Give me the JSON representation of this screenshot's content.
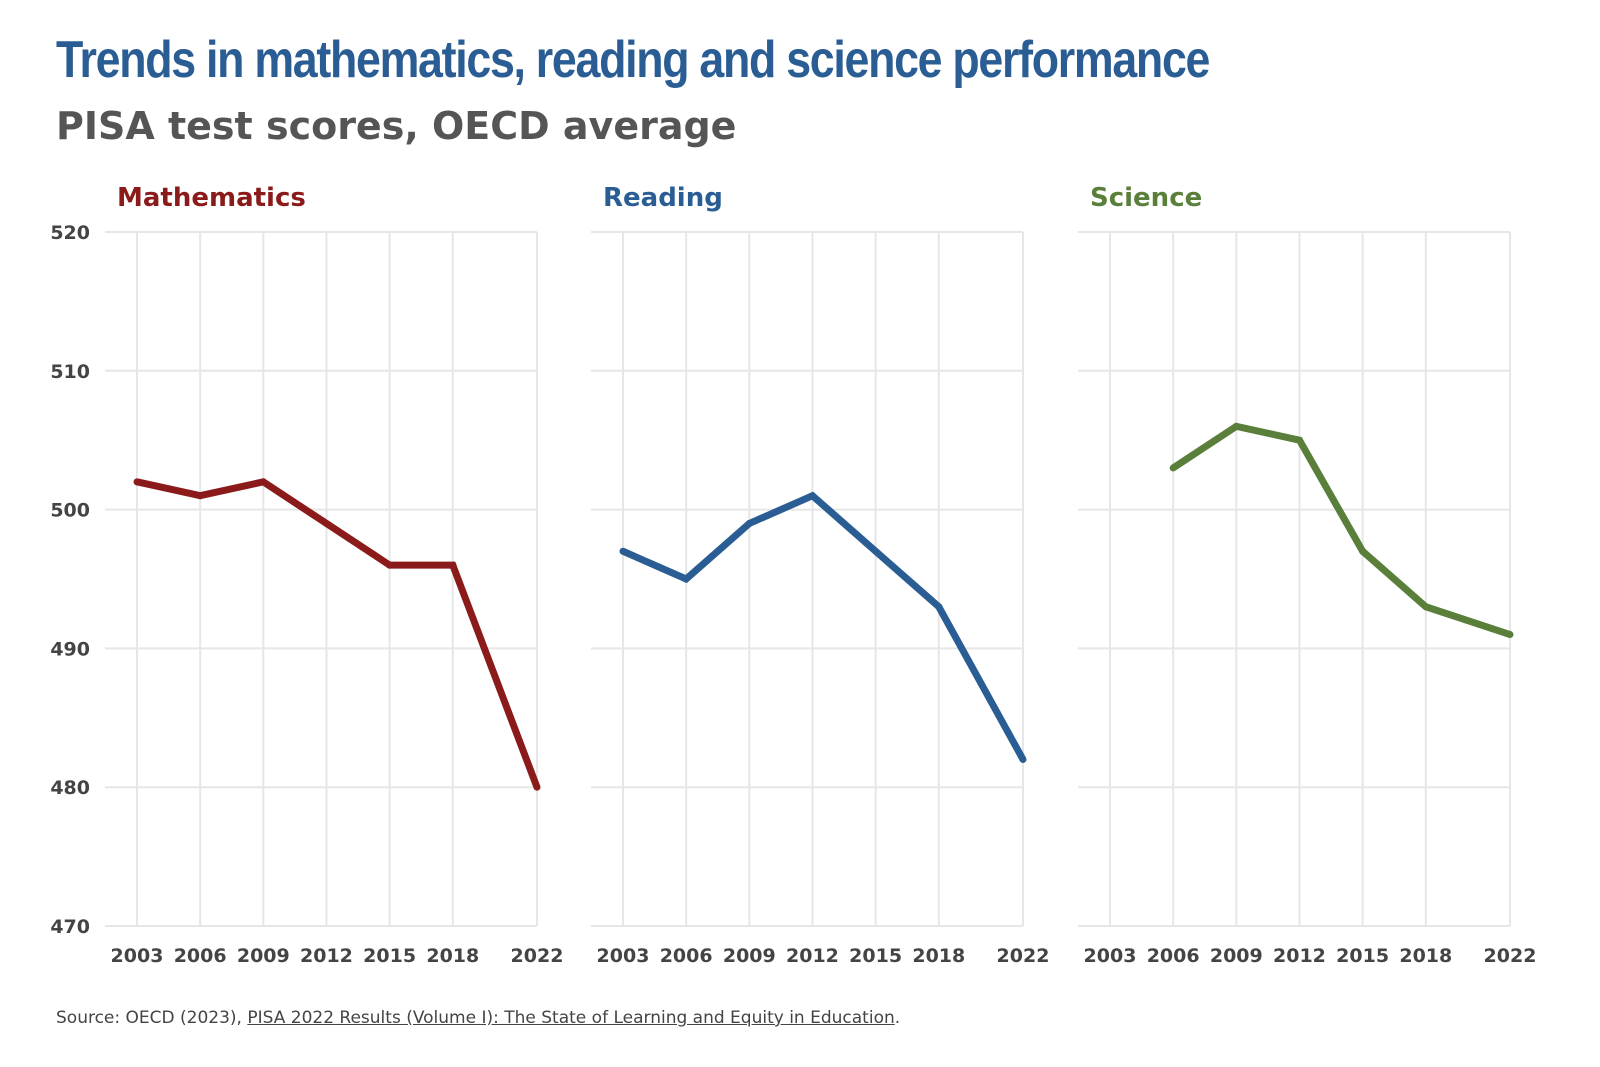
{
  "header": {
    "title": "Trends in mathematics, reading and science performance",
    "subtitle": "PISA test scores, OECD average"
  },
  "colors": {
    "title": "#2a5d93",
    "grid": "#e6e6e6"
  },
  "footer": {
    "prefix": "Source: OECD (2023), ",
    "link": "PISA 2022 Results (Volume I): The State of Learning and Equity in Education",
    "suffix": "."
  },
  "chart_data": {
    "type": "line",
    "x": [
      "2003",
      "2006",
      "2009",
      "2012",
      "2015",
      "2018",
      "2022"
    ],
    "x_numeric": [
      2003,
      2006,
      2009,
      2012,
      2015,
      2018,
      2022
    ],
    "ylim": [
      470,
      520
    ],
    "yticks": [
      470,
      480,
      490,
      500,
      510,
      520
    ],
    "grid": true,
    "panels": [
      {
        "name": "Mathematics",
        "color": "#8b1a1a",
        "values": [
          502,
          501,
          502,
          499,
          496,
          496,
          480
        ]
      },
      {
        "name": "Reading",
        "color": "#2a5d93",
        "values": [
          497,
          495,
          499,
          501,
          497,
          493,
          482
        ]
      },
      {
        "name": "Science",
        "color": "#5a7f3a",
        "values": [
          null,
          503,
          506,
          505,
          497,
          493,
          491
        ]
      }
    ]
  }
}
